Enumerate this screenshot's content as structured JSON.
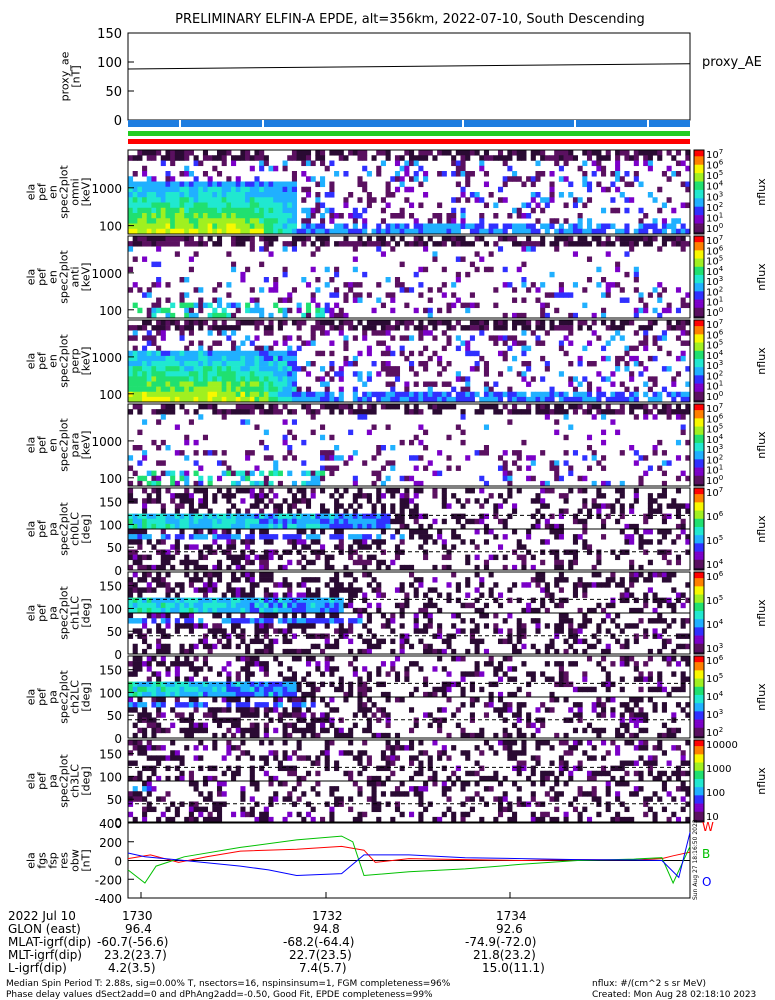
{
  "title": "PRELIMINARY ELFIN-A EPDE, alt=356km, 2022-07-10, South Descending",
  "colors": {
    "background": "#ffffff",
    "foreground": "#000000",
    "bar_blue": "#1e7de0",
    "bar_green": "#22cc22",
    "bar_red": "#ff0000",
    "trace_w": "#ff0000",
    "trace_b": "#00c000",
    "trace_o": "#0000ff",
    "colorscale": [
      "#2a0a33",
      "#5a1060",
      "#7b00c8",
      "#3030ff",
      "#20b0ff",
      "#20e8d0",
      "#20e070",
      "#a0f020",
      "#f8f800",
      "#ff8000",
      "#ff0000"
    ]
  },
  "chart_data": [
    {
      "type": "line",
      "panel": "proxy_ae",
      "ylabel": "proxy_ae\n[nT]",
      "ylim": [
        0,
        150
      ],
      "yticks": [
        "150",
        "100",
        "50",
        "0"
      ],
      "series": [
        {
          "name": "proxy_AE",
          "x": [
            0,
            1
          ],
          "values": [
            88,
            97
          ]
        }
      ]
    },
    {
      "type": "heatmap",
      "panel": "ela_pef_en_spec2plot_omni",
      "ylabel": "ela\npef\nen\nspec2plot\nomni\n[keV]",
      "yscale": "log",
      "yticks": [
        "1000",
        "100"
      ],
      "colorbar_label": "nflux",
      "colorbar_ticks": [
        "10^7",
        "10^6",
        "10^5",
        "10^4",
        "10^3",
        "10^2",
        "10^1",
        "10^0"
      ]
    },
    {
      "type": "heatmap",
      "panel": "ela_pef_en_spec2plot_anti",
      "ylabel": "ela\npef\nen\nspec2plot\nanti\n[keV]",
      "yscale": "log",
      "yticks": [
        "1000",
        "100"
      ],
      "colorbar_label": "nflux",
      "colorbar_ticks": [
        "10^7",
        "10^6",
        "10^5",
        "10^4",
        "10^3",
        "10^2",
        "10^1",
        "10^0"
      ]
    },
    {
      "type": "heatmap",
      "panel": "ela_pef_en_spec2plot_perp",
      "ylabel": "ela\npef\nen\nspec2plot\nperp\n[keV]",
      "yscale": "log",
      "yticks": [
        "1000",
        "100"
      ],
      "colorbar_label": "nflux",
      "colorbar_ticks": [
        "10^7",
        "10^6",
        "10^5",
        "10^4",
        "10^3",
        "10^2",
        "10^1",
        "10^0"
      ]
    },
    {
      "type": "heatmap",
      "panel": "ela_pef_en_spec2plot_para",
      "ylabel": "ela\npef\nen\nspec2plot\npara\n[keV]",
      "yscale": "log",
      "yticks": [
        "1000",
        "100"
      ],
      "colorbar_label": "nflux",
      "colorbar_ticks": [
        "10^7",
        "10^6",
        "10^5",
        "10^4",
        "10^3",
        "10^2",
        "10^1",
        "10^0"
      ]
    },
    {
      "type": "heatmap",
      "panel": "ela_pef_pa_spec2plot_ch0LC",
      "ylabel": "ela\npef\npa\nspec2plot\nch0LC\n[deg]",
      "ylim": [
        0,
        180
      ],
      "yticks": [
        "150",
        "100",
        "50",
        "0"
      ],
      "colorbar_label": "nflux",
      "colorbar_ticks": [
        "10^7",
        "10^6",
        "10^5",
        "10^4"
      ]
    },
    {
      "type": "heatmap",
      "panel": "ela_pef_pa_spec2plot_ch1LC",
      "ylabel": "ela\npef\npa\nspec2plot\nch1LC\n[deg]",
      "ylim": [
        0,
        180
      ],
      "yticks": [
        "150",
        "100",
        "50",
        "0"
      ],
      "colorbar_label": "nflux",
      "colorbar_ticks": [
        "10^6",
        "10^5",
        "10^4",
        "10^3"
      ]
    },
    {
      "type": "heatmap",
      "panel": "ela_pef_pa_spec2plot_ch2LC",
      "ylabel": "ela\npef\npa\nspec2plot\nch2LC\n[deg]",
      "ylim": [
        0,
        180
      ],
      "yticks": [
        "150",
        "100",
        "50",
        "0"
      ],
      "colorbar_label": "nflux",
      "colorbar_ticks": [
        "10^6",
        "10^5",
        "10^4",
        "10^3",
        "10^2"
      ]
    },
    {
      "type": "heatmap",
      "panel": "ela_pef_pa_spec2plot_ch3LC",
      "ylabel": "ela\npef\npa\nspec2plot\nch3LC\n[deg]",
      "ylim": [
        0,
        180
      ],
      "yticks": [
        "150",
        "100",
        "50",
        "0"
      ],
      "colorbar_label": "nflux",
      "colorbar_ticks": [
        "10000",
        "1000",
        "100",
        "10"
      ]
    },
    {
      "type": "line",
      "panel": "ela_fgs_fsp_res_obw",
      "ylabel": "ela\nfgs\nfsp\nres\nobw\n[nT]",
      "ylim": [
        -400,
        400
      ],
      "yticks": [
        "400",
        "200",
        "0",
        "-200",
        "-400"
      ],
      "series": [
        {
          "name": "W",
          "x": [
            0,
            0.04,
            0.09,
            0.14,
            0.2,
            0.3,
            0.38,
            0.42,
            0.44,
            0.5,
            0.6,
            0.7,
            0.8,
            0.9,
            0.95,
            0.97,
            1.0
          ],
          "values": [
            20,
            60,
            -20,
            40,
            100,
            120,
            150,
            110,
            -20,
            20,
            10,
            0,
            10,
            5,
            20,
            50,
            90
          ]
        },
        {
          "name": "B",
          "x": [
            0,
            0.03,
            0.05,
            0.1,
            0.2,
            0.3,
            0.38,
            0.4,
            0.42,
            0.5,
            0.6,
            0.7,
            0.8,
            0.9,
            0.95,
            0.97,
            1.0
          ],
          "values": [
            -100,
            -240,
            -60,
            40,
            140,
            220,
            260,
            200,
            -160,
            -120,
            -90,
            -40,
            0,
            15,
            30,
            -240,
            150
          ]
        },
        {
          "name": "O",
          "x": [
            0,
            0.03,
            0.1,
            0.2,
            0.25,
            0.3,
            0.38,
            0.42,
            0.5,
            0.6,
            0.7,
            0.8,
            0.9,
            0.95,
            0.98,
            1.0
          ],
          "values": [
            80,
            40,
            0,
            -60,
            -100,
            -160,
            -140,
            60,
            60,
            30,
            20,
            10,
            5,
            0,
            -180,
            300
          ]
        }
      ]
    }
  ],
  "time_axis": {
    "ticks": [
      "1730",
      "1732",
      "1734"
    ]
  },
  "ephemeris": {
    "rows": [
      {
        "label": "2022 Jul 10",
        "values": [
          "1730",
          "1732",
          "1734"
        ]
      },
      {
        "label": "GLON (east)",
        "values": [
          "96.4",
          "94.8",
          "92.6"
        ]
      },
      {
        "label": "MLAT-igrf(dip)",
        "values": [
          "-60.7(-56.6)",
          "-68.2(-64.4)",
          "-74.9(-72.0)"
        ]
      },
      {
        "label": "MLT-igrf(dip)",
        "values": [
          "23.2(23.7)",
          "22.7(23.5)",
          "21.8(23.2)"
        ]
      },
      {
        "label": "L-igrf(dip)",
        "values": [
          "4.2(3.5)",
          "7.4(5.7)",
          "15.0(11.1)"
        ]
      }
    ]
  },
  "footer": {
    "line1_left": "Median Spin Period T: 2.88s, sig=0.00% T, nsectors=16, nspinsinsum=1, FGM completeness=96%",
    "line2_left": "Phase delay values dSect2add=0 and dPhAng2add=-0.50, Good Fit, EPDE completeness=99%",
    "line1_right": "nflux: #/(cm^2 s sr MeV)",
    "line2_right": "Created: Mon Aug 28 02:18:10 2023",
    "vertical_stamp": "Sun Aug 27 18:16:50 2023"
  }
}
